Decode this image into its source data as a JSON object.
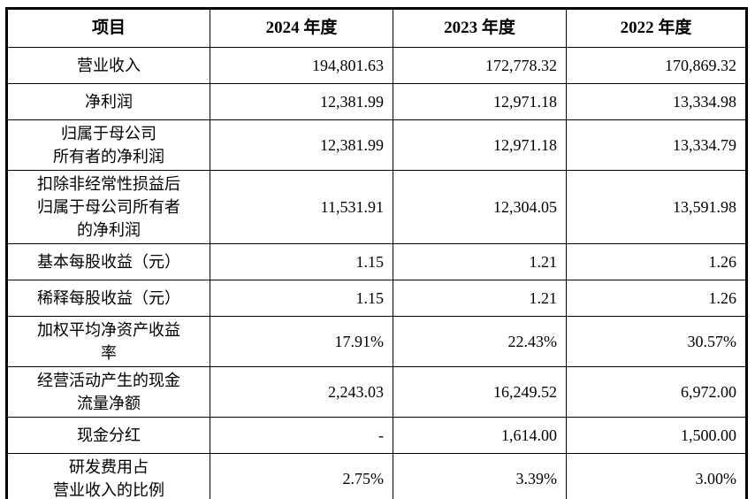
{
  "colors": {
    "background": "#ffffff",
    "text": "#000000",
    "border": "#000000"
  },
  "table": {
    "columns": [
      "项目",
      "2024 年度",
      "2023 年度",
      "2022 年度"
    ],
    "rows": [
      {
        "label": "营业收入",
        "values": [
          "194,801.63",
          "172,778.32",
          "170,869.32"
        ]
      },
      {
        "label": "净利润",
        "values": [
          "12,381.99",
          "12,971.18",
          "13,334.98"
        ]
      },
      {
        "label": "归属于母公司\n所有者的净利润",
        "values": [
          "12,381.99",
          "12,971.18",
          "13,334.79"
        ]
      },
      {
        "label": "扣除非经常性损益后\n归属于母公司所有者\n的净利润",
        "values": [
          "11,531.91",
          "12,304.05",
          "13,591.98"
        ]
      },
      {
        "label": "基本每股收益（元）",
        "values": [
          "1.15",
          "1.21",
          "1.26"
        ]
      },
      {
        "label": "稀释每股收益（元）",
        "values": [
          "1.15",
          "1.21",
          "1.26"
        ]
      },
      {
        "label": "加权平均净资产收益\n率",
        "values": [
          "17.91%",
          "22.43%",
          "30.57%"
        ]
      },
      {
        "label": "经营活动产生的现金\n流量净额",
        "values": [
          "2,243.03",
          "16,249.52",
          "6,972.00"
        ]
      },
      {
        "label": "现金分红",
        "values": [
          "-",
          "1,614.00",
          "1,500.00"
        ]
      },
      {
        "label": "研发费用占\n营业收入的比例",
        "values": [
          "2.75%",
          "3.39%",
          "3.00%"
        ]
      }
    ]
  }
}
